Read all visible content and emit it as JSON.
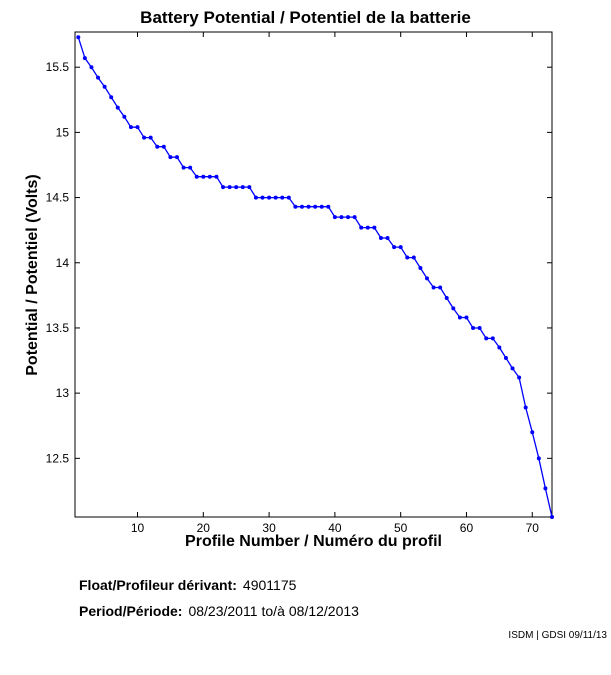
{
  "chart_data": {
    "type": "line",
    "title": "Battery Potential / Potentiel de la batterie",
    "xlabel": "Profile Number / Numéro du profil",
    "ylabel": "Potential / Potentiel (Volts)",
    "xlim": [
      0.5,
      73
    ],
    "ylim": [
      12.05,
      15.77
    ],
    "xticks": [
      10,
      20,
      30,
      40,
      50,
      60,
      70
    ],
    "yticks": [
      12.5,
      13,
      13.5,
      14,
      14.5,
      15,
      15.5
    ],
    "grid": false,
    "series_color": "#0000ff",
    "x": [
      1,
      2,
      3,
      4,
      5,
      6,
      7,
      8,
      9,
      10,
      11,
      12,
      13,
      14,
      15,
      16,
      17,
      18,
      19,
      20,
      21,
      22,
      23,
      24,
      25,
      26,
      27,
      28,
      29,
      30,
      31,
      32,
      33,
      34,
      35,
      36,
      37,
      38,
      39,
      40,
      41,
      42,
      43,
      44,
      45,
      46,
      47,
      48,
      49,
      50,
      51,
      52,
      53,
      54,
      55,
      56,
      57,
      58,
      59,
      60,
      61,
      62,
      63,
      64,
      65,
      66,
      67,
      68,
      69,
      70,
      71,
      72,
      73
    ],
    "y": [
      15.73,
      15.57,
      15.5,
      15.42,
      15.35,
      15.27,
      15.19,
      15.12,
      15.04,
      15.04,
      14.96,
      14.96,
      14.89,
      14.89,
      14.81,
      14.81,
      14.73,
      14.73,
      14.66,
      14.66,
      14.66,
      14.66,
      14.58,
      14.58,
      14.58,
      14.58,
      14.58,
      14.5,
      14.5,
      14.5,
      14.5,
      14.5,
      14.5,
      14.43,
      14.43,
      14.43,
      14.43,
      14.43,
      14.43,
      14.35,
      14.35,
      14.35,
      14.35,
      14.27,
      14.27,
      14.27,
      14.19,
      14.19,
      14.12,
      14.12,
      14.04,
      14.04,
      13.96,
      13.88,
      13.81,
      13.81,
      13.73,
      13.65,
      13.58,
      13.58,
      13.5,
      13.5,
      13.42,
      13.42,
      13.35,
      13.27,
      13.19,
      13.12,
      12.89,
      12.7,
      12.5,
      12.27,
      12.05
    ]
  },
  "float": {
    "label": "Float/Profileur dérivant:",
    "value": "4901175"
  },
  "period": {
    "label": "Period/Période:",
    "start": "08/23/2011",
    "sep": "to/à",
    "end": "08/12/2013"
  },
  "credit": "ISDM | GDSI 09/11/13"
}
